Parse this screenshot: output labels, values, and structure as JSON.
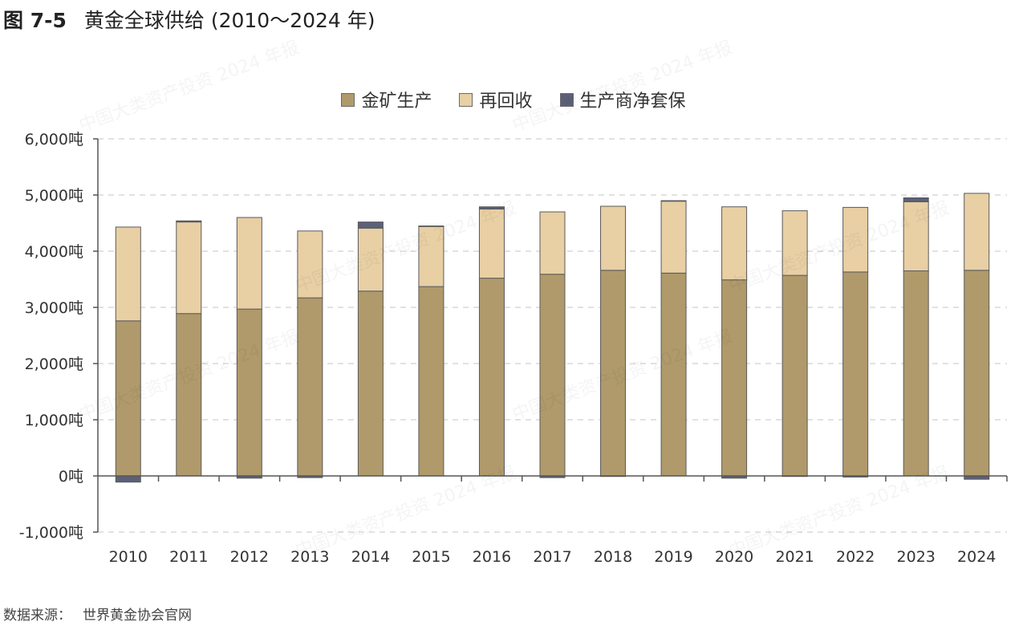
{
  "title": {
    "number": "图 7-5",
    "text": "黄金全球供给 (2010～2024 年)"
  },
  "source": {
    "label": "数据来源：",
    "value": "世界黄金协会官网"
  },
  "watermark": "中国大类资产投资 2024 年报",
  "colors": {
    "mine": "#b09a6b",
    "recycle": "#e8cfa4",
    "hedge": "#5c6078",
    "grid": "#d0d0d0",
    "axis": "#555555"
  },
  "chart_data": {
    "type": "bar",
    "stacked": true,
    "categories": [
      "2010",
      "2011",
      "2012",
      "2013",
      "2014",
      "2015",
      "2016",
      "2017",
      "2018",
      "2019",
      "2020",
      "2021",
      "2022",
      "2023",
      "2024"
    ],
    "series": [
      {
        "name": "金矿生产",
        "color": "#b09a6b",
        "values": [
          2760,
          2890,
          2970,
          3170,
          3290,
          3370,
          3520,
          3590,
          3660,
          3610,
          3490,
          3570,
          3630,
          3650,
          3660
        ]
      },
      {
        "name": "再回收",
        "color": "#e8cfa4",
        "values": [
          1670,
          1630,
          1630,
          1190,
          1120,
          1070,
          1230,
          1110,
          1140,
          1280,
          1300,
          1150,
          1150,
          1230,
          1370
        ]
      },
      {
        "name": "生产商净套保",
        "color": "#5c6078",
        "values": [
          -110,
          20,
          -40,
          -30,
          110,
          10,
          40,
          -30,
          -10,
          10,
          -40,
          -10,
          -20,
          70,
          -60
        ]
      }
    ],
    "ylim": [
      -1000,
      6000
    ],
    "yticks": [
      -1000,
      0,
      1000,
      2000,
      3000,
      4000,
      5000,
      6000
    ],
    "ytick_labels": [
      "-1,000吨",
      "0吨",
      "1,000吨",
      "2,000吨",
      "3,000吨",
      "4,000吨",
      "5,000吨",
      "6,000吨"
    ],
    "grid": true,
    "legend_position": "top-center"
  }
}
